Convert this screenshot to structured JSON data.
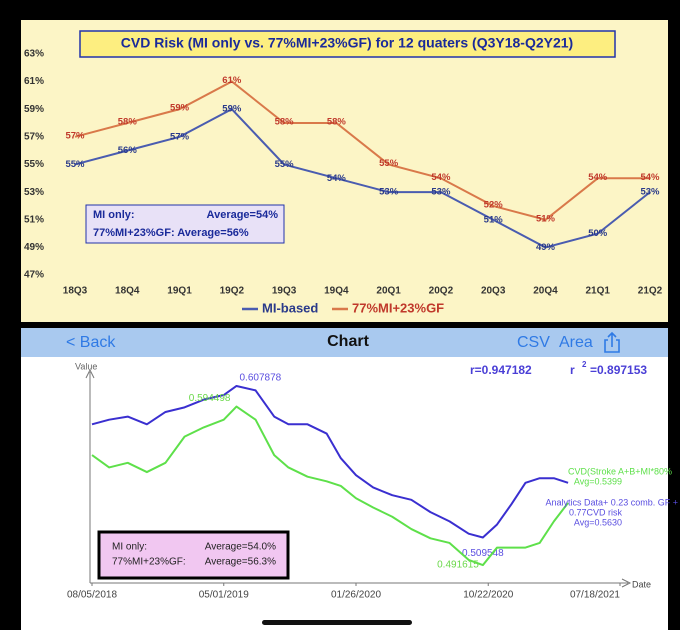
{
  "chart_data": [
    {
      "type": "line",
      "title": "CVD Risk (MI only vs. 77%MI+23%GF) for 12 quaters (Q3Y18-Q2Y21)",
      "categories": [
        "18Q3",
        "18Q4",
        "19Q1",
        "19Q2",
        "19Q3",
        "19Q4",
        "20Q1",
        "20Q2",
        "20Q3",
        "20Q4",
        "21Q1",
        "21Q2"
      ],
      "series": [
        {
          "name": "MI-based",
          "color": "#4a5cb0",
          "values": [
            55,
            56,
            57,
            59,
            55,
            54,
            53,
            53,
            51,
            49,
            50,
            53
          ],
          "value_labels": [
            "55%",
            "56%",
            "57%",
            "59%",
            "55%",
            "54%",
            "53%",
            "53%",
            "51%",
            "49%",
            "50%",
            "53%"
          ]
        },
        {
          "name": "77%MI+23%GF",
          "color": "#d9794a",
          "values": [
            57,
            58,
            59,
            61,
            58,
            58,
            55,
            54,
            52,
            51,
            54,
            54
          ],
          "value_labels": [
            "57%",
            "58%",
            "59%",
            "61%",
            "58%",
            "58%",
            "55%",
            "54%",
            "52%",
            "51%",
            "54%",
            "54%"
          ]
        }
      ],
      "ylim": [
        46.5,
        64
      ],
      "yticks": [
        {
          "value": 47,
          "label": "47%"
        },
        {
          "value": 49,
          "label": "49%"
        },
        {
          "value": 51,
          "label": "51%"
        },
        {
          "value": 53,
          "label": "53%"
        },
        {
          "value": 55,
          "label": "55%"
        },
        {
          "value": 57,
          "label": "57%"
        },
        {
          "value": 59,
          "label": "59%"
        },
        {
          "value": 61,
          "label": "61%"
        },
        {
          "value": 63,
          "label": "63%"
        }
      ],
      "annotations": [
        "MI only:",
        "Average=54%",
        "77%MI+23%GF: Average=56%"
      ]
    },
    {
      "type": "line",
      "y_label": "Value",
      "x_label": "Date",
      "r_label": "r=0.947182",
      "r2_label": "r",
      "r2_sup": "2",
      "r2_value": "=0.897153",
      "x": [
        "08/05/2018",
        "09/09/2018",
        "10/17/2018",
        "11/25/2018",
        "01/02/2019",
        "02/10/2019",
        "03/21/2019",
        "05/01/2019",
        "05/27/2019",
        "07/05/2019",
        "08/12/2019",
        "09/10/2019",
        "10/19/2019",
        "11/27/2019",
        "12/26/2019",
        "01/26/2020",
        "03/01/2020",
        "04/09/2020",
        "05/18/2020",
        "06/26/2020",
        "08/04/2020",
        "09/12/2020",
        "10/11/2020",
        "11/09/2020",
        "12/08/2020",
        "01/06/2021",
        "02/04/2021",
        "03/05/2021",
        "04/03/2021"
      ],
      "xlim": [
        "08/05/2018",
        "07/18/2021"
      ],
      "xticks": [
        "08/05/2018",
        "05/01/2019",
        "01/26/2020",
        "10/22/2020",
        "07/18/2021"
      ],
      "ylim": [
        0.48,
        0.615
      ],
      "series": [
        {
          "name": "Analytics Data+ 0.23 comb. GF +",
          "name_line2": "0.77CVD risk",
          "avg_label": "Avg=0.5630",
          "color": "#3a2fd0",
          "values": [
            0.583,
            0.586,
            0.588,
            0.583,
            0.591,
            0.594,
            0.599,
            0.602,
            0.607878,
            0.605,
            0.588,
            0.583,
            0.583,
            0.577,
            0.561,
            0.55,
            0.542,
            0.537,
            0.534,
            0.526,
            0.52,
            0.512,
            0.509548,
            0.518,
            0.531,
            0.545,
            0.548,
            0.548,
            0.545
          ]
        },
        {
          "name": "CVD(Stroke A+B+MI*80%",
          "avg_label": "Avg=0.5399",
          "color": "#5ee04a",
          "values": [
            0.563,
            0.555,
            0.558,
            0.552,
            0.558,
            0.575,
            0.581,
            0.586,
            0.594498,
            0.586,
            0.563,
            0.555,
            0.549,
            0.546,
            0.543,
            0.535,
            0.529,
            0.523,
            0.515,
            0.509,
            0.506,
            0.495,
            0.491615,
            0.503,
            0.503,
            0.503,
            0.506,
            0.52,
            0.532
          ]
        }
      ],
      "annotations": [
        "MI only:",
        "Average=54.0%",
        "77%MI+23%GF:",
        "Average=56.3%"
      ]
    }
  ],
  "nav": {
    "back": "< Back",
    "title": "Chart",
    "csv": "CSV",
    "area": "Area"
  }
}
